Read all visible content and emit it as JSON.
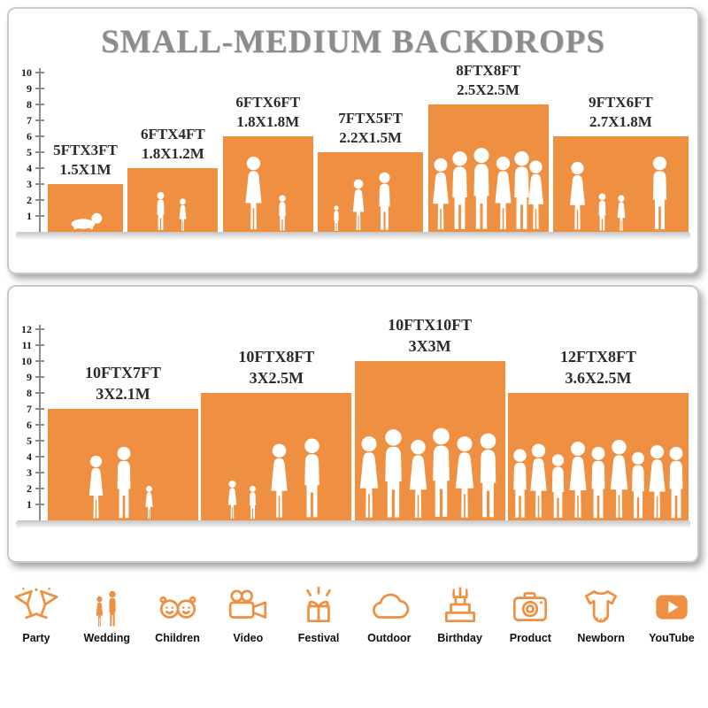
{
  "colors": {
    "accent": "#EE8F41"
  },
  "title": "SMALL-MEDIUM BACKDROPS",
  "top_panel": {
    "scale": [
      "1",
      "2",
      "3",
      "4",
      "5",
      "6",
      "7",
      "8",
      "9",
      "10"
    ],
    "backdrops": [
      {
        "ft": "5FTX3FT",
        "m": "1.5X1M",
        "width_ft": 5,
        "height_ft": 3
      },
      {
        "ft": "6FTX4FT",
        "m": "1.8X1.2M",
        "width_ft": 6,
        "height_ft": 4
      },
      {
        "ft": "6FTX6FT",
        "m": "1.8X1.8M",
        "width_ft": 6,
        "height_ft": 6
      },
      {
        "ft": "7FTX5FT",
        "m": "2.2X1.5M",
        "width_ft": 7,
        "height_ft": 5
      },
      {
        "ft": "8FTX8FT",
        "m": "2.5X2.5M",
        "width_ft": 8,
        "height_ft": 8
      },
      {
        "ft": "9FTX6FT",
        "m": "2.7X1.8M",
        "width_ft": 9,
        "height_ft": 6
      }
    ]
  },
  "bottom_panel": {
    "scale": [
      "1",
      "2",
      "3",
      "4",
      "5",
      "6",
      "7",
      "8",
      "9",
      "10",
      "11",
      "12"
    ],
    "backdrops": [
      {
        "ft": "10FTX7FT",
        "m": "3X2.1M",
        "width_ft": 10,
        "height_ft": 7
      },
      {
        "ft": "10FTX8FT",
        "m": "3X2.5M",
        "width_ft": 10,
        "height_ft": 8
      },
      {
        "ft": "10FTX10FT",
        "m": "3X3M",
        "width_ft": 10,
        "height_ft": 10
      },
      {
        "ft": "12FTX8FT",
        "m": "3.6X2.5M",
        "width_ft": 12,
        "height_ft": 8
      }
    ]
  },
  "categories": [
    {
      "label": "Party",
      "icon": "party-icon"
    },
    {
      "label": "Wedding",
      "icon": "wedding-icon"
    },
    {
      "label": "Children",
      "icon": "children-icon"
    },
    {
      "label": "Video",
      "icon": "video-icon"
    },
    {
      "label": "Festival",
      "icon": "festival-icon"
    },
    {
      "label": "Outdoor",
      "icon": "outdoor-icon"
    },
    {
      "label": "Birthday",
      "icon": "birthday-icon"
    },
    {
      "label": "Product",
      "icon": "product-icon"
    },
    {
      "label": "Newborn",
      "icon": "newborn-icon"
    },
    {
      "label": "YouTube",
      "icon": "youtube-icon"
    }
  ]
}
